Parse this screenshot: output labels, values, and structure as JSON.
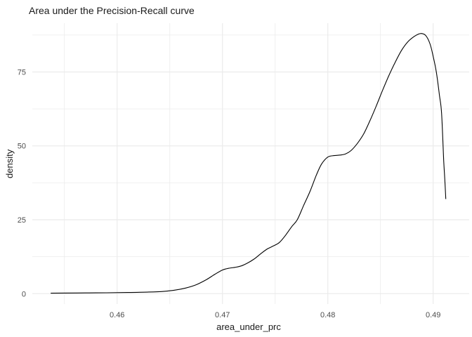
{
  "chart_data": {
    "type": "line",
    "variant": "density-curve",
    "title": "Area under the Precision-Recall curve",
    "xlabel": "area_under_prc",
    "ylabel": "density",
    "xlim": [
      0.45195,
      0.49342
    ],
    "ylim": [
      -3.5,
      91.5
    ],
    "grid": "major+minor",
    "legend": "none",
    "x_ticks": [
      {
        "value": 0.46,
        "label": "0.46"
      },
      {
        "value": 0.47,
        "label": "0.47"
      },
      {
        "value": 0.48,
        "label": "0.48"
      },
      {
        "value": 0.49,
        "label": "0.49"
      }
    ],
    "x_minor_ticks": [
      0.455,
      0.465,
      0.475,
      0.485
    ],
    "y_ticks": [
      {
        "value": 0,
        "label": "0"
      },
      {
        "value": 25,
        "label": "25"
      },
      {
        "value": 50,
        "label": "50"
      },
      {
        "value": 75,
        "label": "75"
      }
    ],
    "y_minor_ticks": [
      12.5,
      37.5,
      62.5,
      87.5
    ],
    "series": [
      {
        "name": "density",
        "color": "#000000",
        "points": [
          [
            0.4537,
            0.15
          ],
          [
            0.455,
            0.2
          ],
          [
            0.457,
            0.25
          ],
          [
            0.459,
            0.3
          ],
          [
            0.461,
            0.4
          ],
          [
            0.463,
            0.55
          ],
          [
            0.4645,
            0.8
          ],
          [
            0.4655,
            1.2
          ],
          [
            0.4665,
            1.9
          ],
          [
            0.4675,
            3.0
          ],
          [
            0.4685,
            4.8
          ],
          [
            0.4693,
            6.6
          ],
          [
            0.47,
            8.0
          ],
          [
            0.4706,
            8.6
          ],
          [
            0.4712,
            8.9
          ],
          [
            0.4718,
            9.4
          ],
          [
            0.4724,
            10.4
          ],
          [
            0.473,
            11.7
          ],
          [
            0.4736,
            13.4
          ],
          [
            0.4742,
            15.0
          ],
          [
            0.4748,
            16.1
          ],
          [
            0.4754,
            17.3
          ],
          [
            0.476,
            19.8
          ],
          [
            0.4766,
            22.8
          ],
          [
            0.4771,
            25.0
          ],
          [
            0.4777,
            29.8
          ],
          [
            0.4783,
            34.5
          ],
          [
            0.4789,
            40.0
          ],
          [
            0.4794,
            43.8
          ],
          [
            0.48,
            46.2
          ],
          [
            0.4806,
            46.7
          ],
          [
            0.4812,
            46.9
          ],
          [
            0.4817,
            47.3
          ],
          [
            0.4822,
            48.4
          ],
          [
            0.4828,
            50.8
          ],
          [
            0.4834,
            54.0
          ],
          [
            0.484,
            58.5
          ],
          [
            0.4846,
            63.5
          ],
          [
            0.4852,
            68.8
          ],
          [
            0.4858,
            73.8
          ],
          [
            0.4864,
            78.3
          ],
          [
            0.487,
            82.3
          ],
          [
            0.4876,
            85.2
          ],
          [
            0.4882,
            87.0
          ],
          [
            0.4886,
            87.8
          ],
          [
            0.4889,
            88.0
          ],
          [
            0.4893,
            87.3
          ],
          [
            0.4897,
            84.5
          ],
          [
            0.49,
            80.3
          ],
          [
            0.4903,
            75.0
          ],
          [
            0.4906,
            67.0
          ],
          [
            0.4908,
            61.0
          ],
          [
            0.491,
            45.0
          ],
          [
            0.4911,
            39.0
          ],
          [
            0.4912,
            32.0
          ]
        ]
      }
    ]
  },
  "style": {
    "background": "#FFFFFF",
    "grid_color": "#EBEBEB",
    "tick_label_color": "#4D4D4D",
    "text_color": "#1A1A1A",
    "line_color": "#000000",
    "line_width": 1.1
  }
}
